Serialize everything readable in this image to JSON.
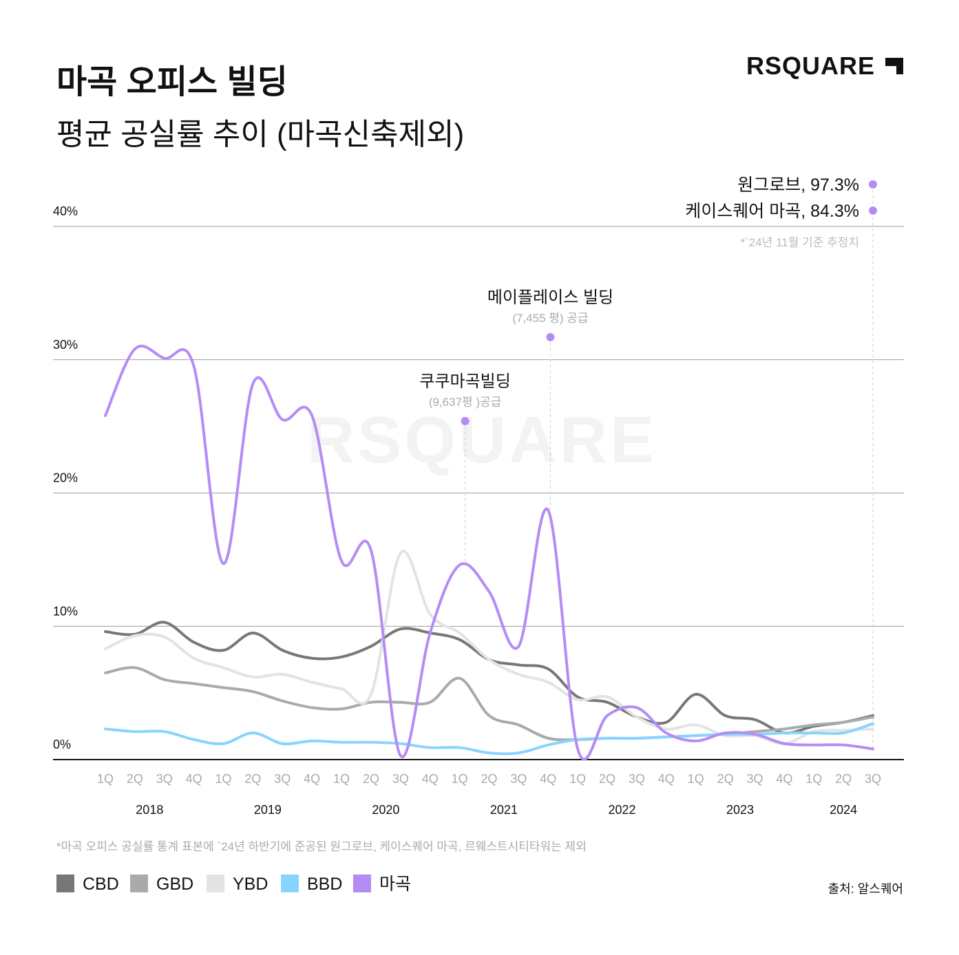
{
  "chart_data": {
    "type": "line",
    "title": "마곡 오피스 빌딩",
    "subtitle": "평균 공실률 추이 (마곡신축제외)",
    "brand": "RSQUARE",
    "categories": [
      "1Q",
      "2Q",
      "3Q",
      "4Q",
      "1Q",
      "2Q",
      "3Q",
      "4Q",
      "1Q",
      "2Q",
      "3Q",
      "4Q",
      "1Q",
      "2Q",
      "3Q",
      "4Q",
      "1Q",
      "2Q",
      "3Q",
      "4Q",
      "1Q",
      "2Q",
      "3Q",
      "4Q",
      "1Q",
      "2Q",
      "3Q"
    ],
    "groups": [
      "2018",
      "2019",
      "2020",
      "2021",
      "2022",
      "2023",
      "2024"
    ],
    "ylim": [
      0,
      40
    ],
    "yticks": [
      {
        "value": 0,
        "label": "0%"
      },
      {
        "value": 10,
        "label": "10%"
      },
      {
        "value": 20,
        "label": "20%"
      },
      {
        "value": 30,
        "label": "30%"
      },
      {
        "value": 40,
        "label": "40%"
      }
    ],
    "grid": true,
    "series": [
      {
        "name": "CBD",
        "color": "#777777",
        "values": [
          9.6,
          9.4,
          10.3,
          8.8,
          8.2,
          9.5,
          8.2,
          7.6,
          7.7,
          8.5,
          9.8,
          9.5,
          9.0,
          7.5,
          7.1,
          6.8,
          4.7,
          4.3,
          3.2,
          2.8,
          4.9,
          3.3,
          3.0,
          2.0,
          2.5,
          2.8,
          3.3
        ]
      },
      {
        "name": "GBD",
        "color": "#aaaaaa",
        "values": [
          6.5,
          6.9,
          6.0,
          5.7,
          5.4,
          5.1,
          4.4,
          3.9,
          3.8,
          4.3,
          4.3,
          4.3,
          6.1,
          3.3,
          2.6,
          1.6,
          1.5,
          1.6,
          1.6,
          1.7,
          1.8,
          1.9,
          2.1,
          2.3,
          2.6,
          2.8,
          3.2
        ]
      },
      {
        "name": "YBD",
        "color": "#e3e3e3",
        "values": [
          8.3,
          9.3,
          9.2,
          7.6,
          6.9,
          6.2,
          6.4,
          5.8,
          5.3,
          4.9,
          15.5,
          10.9,
          9.5,
          7.5,
          6.4,
          5.8,
          4.5,
          4.7,
          3.2,
          2.3,
          2.6,
          1.8,
          1.8,
          1.2,
          2.1,
          2.2,
          2.3
        ]
      },
      {
        "name": "BBD",
        "color": "#88d4ff",
        "values": [
          2.3,
          2.1,
          2.1,
          1.5,
          1.2,
          2.0,
          1.2,
          1.4,
          1.3,
          1.3,
          1.2,
          0.9,
          0.9,
          0.5,
          0.5,
          1.1,
          1.5,
          1.6,
          1.6,
          1.7,
          1.8,
          1.9,
          1.9,
          2.0,
          2.0,
          2.0,
          2.7
        ]
      },
      {
        "name": "마곡",
        "color": "#b58cf5",
        "values": [
          25.8,
          30.8,
          30.1,
          29.5,
          14.7,
          28.2,
          25.5,
          25.8,
          14.9,
          15.7,
          0.3,
          9.5,
          14.6,
          12.6,
          8.5,
          18.7,
          0.8,
          3.3,
          3.9,
          2.0,
          1.4,
          2.0,
          1.9,
          1.2,
          1.1,
          1.1,
          0.8
        ]
      }
    ],
    "annotations": [
      {
        "text": "쿠쿠마곡빌딩",
        "subtext": "(9,637평 )공급"
      },
      {
        "text": "메이플레이스 빌딩",
        "subtext": "(7,455 평) 공급"
      }
    ],
    "outliers": [
      "원그로브, 97.3%",
      "케이스퀘어 마곡, 84.3%"
    ],
    "outlier_note": "*`24년 11월 기준 추정치",
    "footnote": "*마곡 오피스 공실률 통계 표본에 `24년 하반기에 준공된 원그로브, 케이스퀘어 마곡, 르웨스트시티타워는 제외",
    "source": "출처: 알스퀘어"
  }
}
